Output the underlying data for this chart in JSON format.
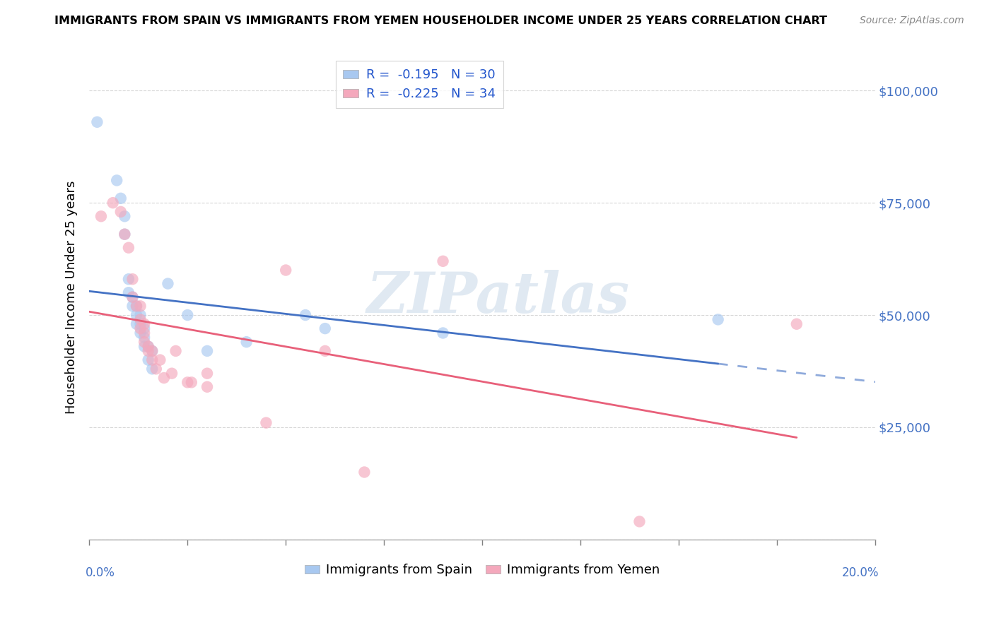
{
  "title": "IMMIGRANTS FROM SPAIN VS IMMIGRANTS FROM YEMEN HOUSEHOLDER INCOME UNDER 25 YEARS CORRELATION CHART",
  "source": "Source: ZipAtlas.com",
  "ylabel": "Householder Income Under 25 years",
  "legend_spain": "Immigrants from Spain",
  "legend_yemen": "Immigrants from Yemen",
  "r_spain": -0.195,
  "n_spain": 30,
  "r_yemen": -0.225,
  "n_yemen": 34,
  "color_spain": "#A8C8F0",
  "color_yemen": "#F4A8BC",
  "trendline_spain": "#4472C4",
  "trendline_yemen": "#E8607A",
  "background": "#FFFFFF",
  "xlim": [
    0.0,
    0.2
  ],
  "ylim": [
    0,
    108000
  ],
  "yticks": [
    0,
    25000,
    50000,
    75000,
    100000
  ],
  "ytick_labels": [
    "",
    "$25,000",
    "$50,000",
    "$75,000",
    "$100,000"
  ],
  "spain_x": [
    0.002,
    0.007,
    0.008,
    0.009,
    0.009,
    0.01,
    0.01,
    0.011,
    0.011,
    0.012,
    0.012,
    0.012,
    0.013,
    0.013,
    0.013,
    0.014,
    0.014,
    0.014,
    0.015,
    0.015,
    0.016,
    0.016,
    0.02,
    0.025,
    0.03,
    0.04,
    0.055,
    0.06,
    0.09,
    0.16
  ],
  "spain_y": [
    93000,
    80000,
    76000,
    72000,
    68000,
    58000,
    55000,
    54000,
    52000,
    52000,
    50000,
    48000,
    50000,
    48000,
    46000,
    47000,
    45000,
    43000,
    43000,
    40000,
    42000,
    38000,
    57000,
    50000,
    42000,
    44000,
    50000,
    47000,
    46000,
    49000
  ],
  "yemen_x": [
    0.003,
    0.006,
    0.008,
    0.009,
    0.01,
    0.011,
    0.011,
    0.012,
    0.013,
    0.013,
    0.013,
    0.014,
    0.014,
    0.014,
    0.015,
    0.015,
    0.016,
    0.016,
    0.017,
    0.018,
    0.019,
    0.021,
    0.022,
    0.025,
    0.026,
    0.03,
    0.03,
    0.045,
    0.05,
    0.06,
    0.07,
    0.09,
    0.14,
    0.18
  ],
  "yemen_y": [
    72000,
    75000,
    73000,
    68000,
    65000,
    58000,
    54000,
    52000,
    52000,
    49000,
    47000,
    48000,
    46000,
    44000,
    43000,
    42000,
    42000,
    40000,
    38000,
    40000,
    36000,
    37000,
    42000,
    35000,
    35000,
    37000,
    34000,
    26000,
    60000,
    42000,
    15000,
    62000,
    4000,
    48000
  ],
  "watermark": "ZIPatlas",
  "grid_color": "#CCCCCC",
  "xtick_positions": [
    0.0,
    0.025,
    0.05,
    0.075,
    0.1,
    0.125,
    0.15,
    0.175,
    0.2
  ]
}
